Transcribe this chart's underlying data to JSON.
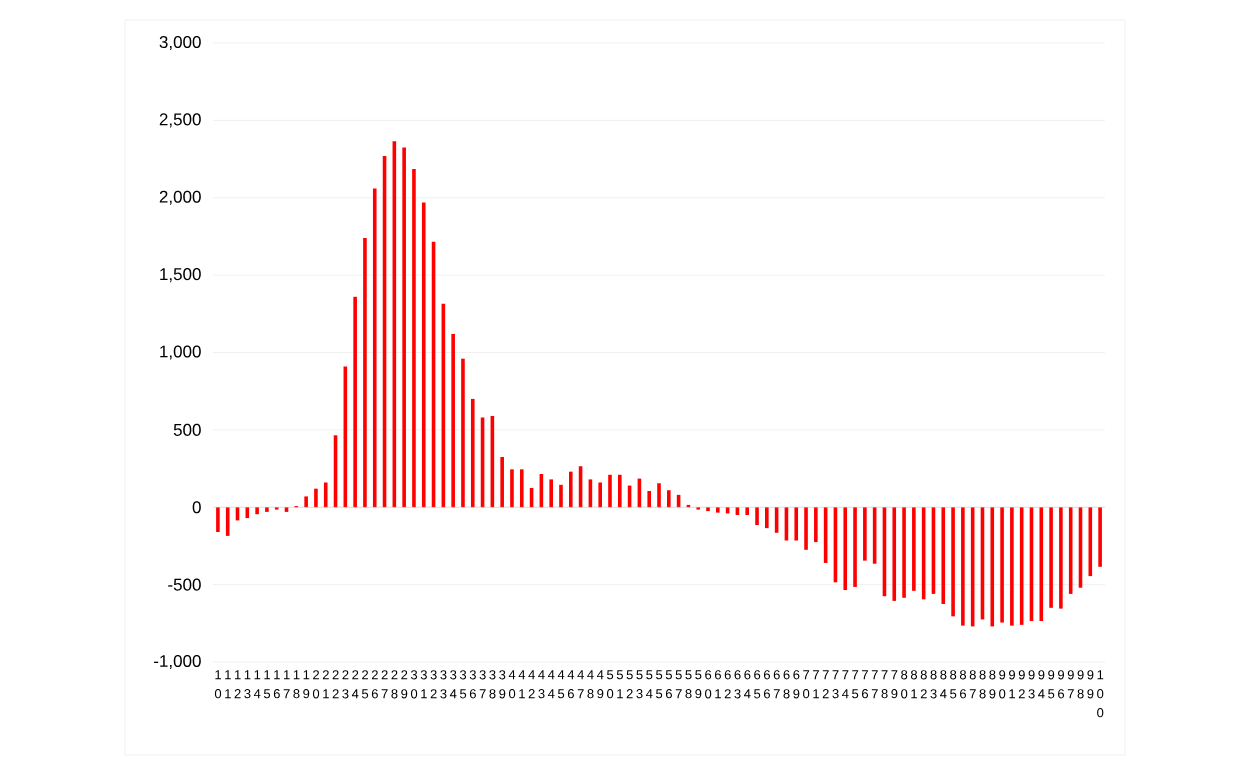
{
  "chart_data": {
    "type": "bar",
    "categories": [
      "10",
      "11",
      "12",
      "13",
      "14",
      "15",
      "16",
      "17",
      "18",
      "19",
      "20",
      "21",
      "22",
      "23",
      "24",
      "25",
      "26",
      "27",
      "28",
      "29",
      "30",
      "31",
      "32",
      "33",
      "34",
      "35",
      "36",
      "37",
      "38",
      "39",
      "40",
      "41",
      "42",
      "43",
      "44",
      "45",
      "46",
      "47",
      "48",
      "49",
      "50",
      "51",
      "52",
      "53",
      "54",
      "55",
      "56",
      "57",
      "58",
      "59",
      "60",
      "61",
      "62",
      "63",
      "64",
      "65",
      "66",
      "67",
      "68",
      "69",
      "70",
      "71",
      "72",
      "73",
      "74",
      "75",
      "76",
      "77",
      "78",
      "79",
      "80",
      "81",
      "82",
      "83",
      "84",
      "85",
      "86",
      "87",
      "88",
      "89",
      "90",
      "91",
      "92",
      "93",
      "94",
      "95",
      "96",
      "97",
      "98",
      "99",
      "100"
    ],
    "values": [
      -160,
      -185,
      -85,
      -70,
      -45,
      -30,
      -15,
      -30,
      8,
      70,
      120,
      160,
      465,
      910,
      1360,
      1740,
      2060,
      2270,
      2365,
      2325,
      2185,
      1970,
      1715,
      1315,
      1120,
      960,
      700,
      580,
      590,
      325,
      245,
      245,
      125,
      215,
      180,
      145,
      230,
      265,
      180,
      160,
      210,
      210,
      140,
      185,
      105,
      155,
      110,
      80,
      15,
      -15,
      -25,
      -35,
      -40,
      -50,
      -50,
      -115,
      -135,
      -165,
      -215,
      -215,
      -275,
      -225,
      -360,
      -485,
      -535,
      -515,
      -345,
      -365,
      -575,
      -605,
      -585,
      -540,
      -595,
      -560,
      -625,
      -705,
      -765,
      -770,
      -725,
      -770,
      -745,
      -765,
      -760,
      -735,
      -735,
      -650,
      -655,
      -560,
      -520,
      -445,
      -385
    ],
    "color": "#ff0000",
    "ylim": [
      -1000,
      3000
    ],
    "yticks": [
      {
        "value": -1000,
        "label": "-1,000"
      },
      {
        "value": -500,
        "label": "-500"
      },
      0,
      500,
      {
        "value": 1000,
        "label": "1,000"
      },
      {
        "value": 1500,
        "label": "1,500"
      },
      {
        "value": 2000,
        "label": "2,000"
      },
      {
        "value": 2500,
        "label": "2,500"
      },
      {
        "value": 3000,
        "label": "3,000"
      }
    ],
    "grid": "y"
  }
}
